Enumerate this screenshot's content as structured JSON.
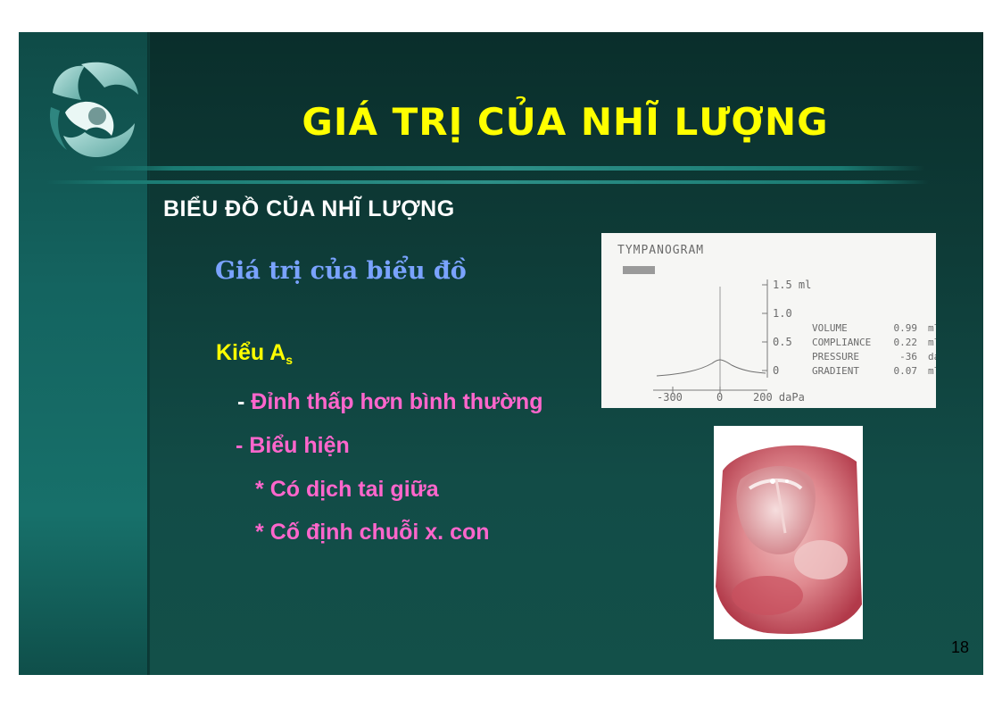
{
  "slide": {
    "title": "GIÁ TRỊ CỦA NHĨ LƯỢNG",
    "section_heading": "BIỂU ĐỒ CỦA NHĨ LƯỢNG",
    "subtitle": "Giá trị của biểu đồ",
    "type_label": "Kiểu A",
    "type_subscript": "s",
    "bullets": [
      {
        "prefix": "- ",
        "text": "Đỉnh thấp hơn bình thường"
      },
      {
        "prefix": "- ",
        "text": "Biểu hiện"
      },
      {
        "prefix": "* ",
        "text": "Có dịch tai giữa"
      },
      {
        "prefix": "* ",
        "text": "Cố định chuỗi x. con"
      }
    ],
    "page_number": "18"
  },
  "colors": {
    "title": "#ffff00",
    "section": "#ffffff",
    "subtitle": "#7aa3ff",
    "bullet_text": "#ff66cc",
    "background": "#0e3c38",
    "left_band": "#146460"
  },
  "tympanogram": {
    "header": "TYMPANOGRAM",
    "y_labels": [
      "1.5 ml",
      "1.0",
      "0.5",
      "0"
    ],
    "x_labels": [
      "-300",
      "0",
      "200 daPa"
    ],
    "readings": [
      {
        "label": "VOLUME",
        "value": "0.99",
        "unit": "ml"
      },
      {
        "label": "COMPLIANCE",
        "value": "0.22",
        "unit": "ml"
      },
      {
        "label": "PRESSURE",
        "value": "-36",
        "unit": "daPa"
      },
      {
        "label": "GRADIENT",
        "value": "0.07",
        "unit": "ml"
      }
    ]
  },
  "images": {
    "logo_icon": "dolphin-logo-icon",
    "otoscopic_photo": "eardrum-photo"
  }
}
